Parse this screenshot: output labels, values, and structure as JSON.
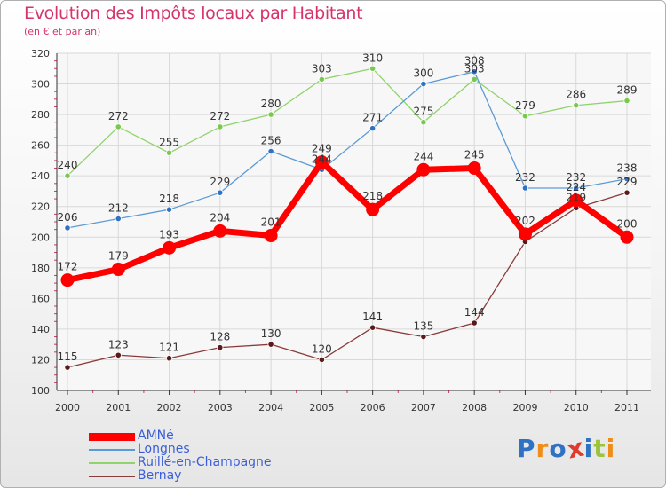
{
  "title": "Evolution des Impôts locaux par Habitant",
  "subtitle": "(en € et par an)",
  "brand": "Proxiti",
  "colors": {
    "title": "#d6336c",
    "legend_text": "#3a5ed8",
    "grid": "#d8d8d8",
    "axis": "#333333"
  },
  "chart_data": {
    "type": "line",
    "x": [
      "2000",
      "2001",
      "2002",
      "2003",
      "2004",
      "2005",
      "2006",
      "2007",
      "2008",
      "2009",
      "2010",
      "2011"
    ],
    "ylim": [
      100,
      320
    ],
    "yticks": [
      100,
      120,
      140,
      160,
      180,
      200,
      220,
      240,
      260,
      280,
      300,
      320
    ],
    "grid": true,
    "legend_position": "bottom-left",
    "series": [
      {
        "name": "AMNé",
        "color": "#ff0000",
        "marker_color": "#ff0000",
        "values": [
          172,
          179,
          193,
          204,
          201,
          249,
          218,
          244,
          245,
          202,
          224,
          200
        ],
        "labels": [
          "172",
          "179",
          "193",
          "204",
          "201",
          "249",
          "218",
          "244",
          "245",
          "202",
          "224",
          "200"
        ]
      },
      {
        "name": "Longnes",
        "color": "#5b9bd5",
        "marker_color": "#2f72c4",
        "values": [
          206,
          212,
          218,
          229,
          256,
          244,
          271,
          300,
          308,
          232,
          232,
          238
        ],
        "labels": [
          "206",
          "212",
          "218",
          "229",
          "256",
          "244",
          "271",
          "300",
          "308",
          "232",
          "232",
          "238"
        ]
      },
      {
        "name": "Ruillé-en-Champagne",
        "color": "#8fd36b",
        "marker_color": "#7ac94f",
        "values": [
          240,
          272,
          255,
          272,
          280,
          303,
          310,
          275,
          303,
          279,
          286,
          289
        ],
        "labels": [
          "240",
          "272",
          "255",
          "272",
          "280",
          "303",
          "310",
          "275",
          "303",
          "279",
          "286",
          "289"
        ]
      },
      {
        "name": "Bernay",
        "color": "#8b3a3a",
        "marker_color": "#5a1a1a",
        "values": [
          115,
          123,
          121,
          128,
          130,
          120,
          141,
          135,
          144,
          197,
          219,
          229
        ],
        "labels": [
          "115",
          "123",
          "121",
          "128",
          "130",
          "120",
          "141",
          "135",
          "144",
          "",
          "219",
          "229"
        ]
      }
    ]
  }
}
